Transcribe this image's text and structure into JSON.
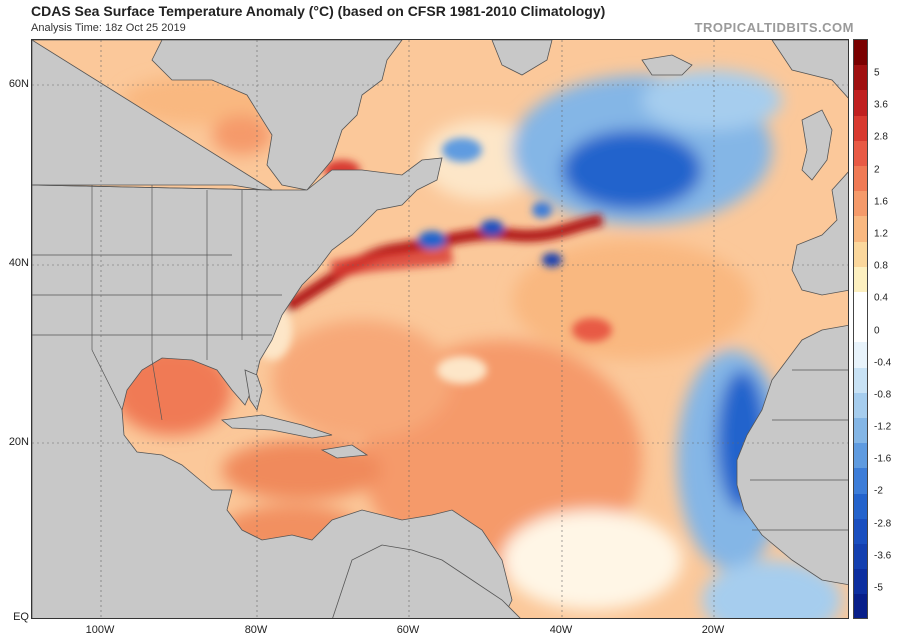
{
  "header": {
    "title": "CDAS Sea Surface Temperature Anomaly (°C) (based on CFSR 1981-2010 Climatology)",
    "subtitle": "Analysis Time: 18z Oct 25 2019",
    "watermark": "TROPICALTIDBITS.COM"
  },
  "map": {
    "latitude_labels": [
      "60N",
      "40N",
      "20N",
      "EQ"
    ],
    "longitude_labels": [
      "100W",
      "80W",
      "60W",
      "40W",
      "20W"
    ],
    "land_color": "#c8c8c8",
    "border_color": "#555555"
  },
  "colorbar": {
    "ticks": [
      "5",
      "3.6",
      "2.8",
      "2",
      "1.6",
      "1.2",
      "0.8",
      "0.4",
      "0",
      "-0.4",
      "-0.8",
      "-1.2",
      "-1.6",
      "-2",
      "-2.8",
      "-3.6",
      "-5"
    ],
    "colors": [
      "#7a0000",
      "#a01010",
      "#c02020",
      "#d83a30",
      "#e85a45",
      "#f07a55",
      "#f59a6a",
      "#f9b880",
      "#fbd79c",
      "#fdf0c0",
      "#ffffff",
      "#ffffff",
      "#e8f3fb",
      "#c8e2f5",
      "#a6cdee",
      "#84b6e6",
      "#5f9be0",
      "#3d7dd8",
      "#2463cc",
      "#1a4fc0",
      "#1440b0",
      "#0d2fa0",
      "#081f8a"
    ]
  }
}
